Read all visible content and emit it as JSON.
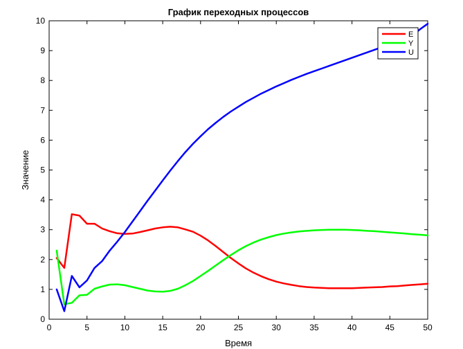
{
  "chart_data": {
    "type": "line",
    "title": "График переходных процессов",
    "xlabel": "Время",
    "ylabel": "Значение",
    "xlim": [
      0,
      50
    ],
    "ylim": [
      0,
      10
    ],
    "xticks": [
      0,
      5,
      10,
      15,
      20,
      25,
      30,
      35,
      40,
      45,
      50
    ],
    "yticks": [
      0,
      1,
      2,
      3,
      4,
      5,
      6,
      7,
      8,
      9,
      10
    ],
    "grid": false,
    "legend_position": "top-right",
    "series": [
      {
        "name": "E",
        "color": "#ff0000",
        "x": [
          1,
          2,
          3,
          4,
          5,
          6,
          7,
          8,
          9,
          10,
          11,
          12,
          13,
          14,
          15,
          16,
          17,
          18,
          19,
          20,
          21,
          22,
          23,
          24,
          25,
          26,
          27,
          28,
          29,
          30,
          31,
          32,
          33,
          34,
          35,
          36,
          37,
          38,
          39,
          40,
          41,
          42,
          43,
          44,
          45,
          46,
          47,
          48,
          49,
          50
        ],
        "values": [
          2.05,
          1.72,
          3.52,
          3.47,
          3.2,
          3.2,
          3.04,
          2.95,
          2.88,
          2.86,
          2.87,
          2.92,
          2.98,
          3.04,
          3.08,
          3.1,
          3.08,
          3.01,
          2.93,
          2.8,
          2.64,
          2.45,
          2.25,
          2.05,
          1.87,
          1.7,
          1.56,
          1.44,
          1.34,
          1.26,
          1.2,
          1.15,
          1.11,
          1.08,
          1.06,
          1.05,
          1.04,
          1.04,
          1.04,
          1.04,
          1.05,
          1.06,
          1.07,
          1.08,
          1.1,
          1.11,
          1.13,
          1.15,
          1.17,
          1.19
        ]
      },
      {
        "name": "Y",
        "color": "#00ff00",
        "x": [
          1,
          2,
          3,
          4,
          5,
          6,
          7,
          8,
          9,
          10,
          11,
          12,
          13,
          14,
          15,
          16,
          17,
          18,
          19,
          20,
          21,
          22,
          23,
          24,
          25,
          26,
          27,
          28,
          29,
          30,
          31,
          32,
          33,
          34,
          35,
          36,
          37,
          38,
          39,
          40,
          41,
          42,
          43,
          44,
          45,
          46,
          47,
          48,
          49,
          50
        ],
        "values": [
          2.3,
          0.5,
          0.55,
          0.8,
          0.82,
          1.02,
          1.1,
          1.16,
          1.17,
          1.14,
          1.08,
          1.02,
          0.96,
          0.93,
          0.92,
          0.95,
          1.02,
          1.14,
          1.28,
          1.45,
          1.62,
          1.8,
          1.98,
          2.15,
          2.31,
          2.45,
          2.57,
          2.67,
          2.75,
          2.82,
          2.87,
          2.91,
          2.94,
          2.96,
          2.98,
          2.99,
          3.0,
          3.0,
          3.0,
          2.99,
          2.98,
          2.96,
          2.95,
          2.93,
          2.91,
          2.89,
          2.87,
          2.85,
          2.83,
          2.81
        ]
      },
      {
        "name": "U",
        "color": "#0000ff",
        "x": [
          1,
          2,
          3,
          4,
          5,
          6,
          7,
          8,
          9,
          10,
          11,
          12,
          13,
          14,
          15,
          16,
          17,
          18,
          19,
          20,
          21,
          22,
          23,
          24,
          25,
          26,
          27,
          28,
          29,
          30,
          31,
          32,
          33,
          34,
          35,
          36,
          37,
          38,
          39,
          40,
          41,
          42,
          43,
          44,
          45,
          46,
          47,
          48,
          49,
          50
        ],
        "values": [
          1.0,
          0.27,
          1.45,
          1.07,
          1.3,
          1.72,
          1.95,
          2.3,
          2.6,
          2.92,
          3.27,
          3.62,
          3.97,
          4.31,
          4.65,
          4.98,
          5.3,
          5.6,
          5.88,
          6.13,
          6.37,
          6.58,
          6.78,
          6.96,
          7.12,
          7.28,
          7.42,
          7.56,
          7.68,
          7.8,
          7.91,
          8.02,
          8.12,
          8.22,
          8.31,
          8.4,
          8.49,
          8.58,
          8.67,
          8.76,
          8.85,
          8.94,
          9.03,
          9.12,
          9.21,
          9.31,
          9.41,
          9.51,
          9.72,
          9.9
        ]
      }
    ]
  }
}
